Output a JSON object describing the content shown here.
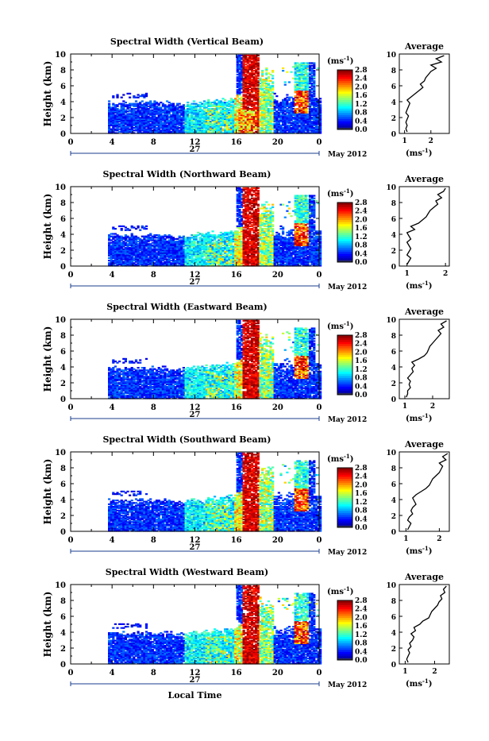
{
  "figure": {
    "x_axis_title": "Local Time",
    "month_label": "May 2012",
    "colorbar_unit": "(ms",
    "colorbar_unit_exp": "-1",
    "average_title": "Average"
  },
  "chart_data": [
    {
      "type": "heatmap",
      "title": "Spectral Width (Vertical Beam)",
      "ylabel": "Height (km)",
      "xlabel": "Local Time",
      "x_ticks": [
        "0",
        "4",
        "8",
        "12",
        "16",
        "20",
        "0"
      ],
      "xlim": [
        0,
        24
      ],
      "y_ticks": [
        "0",
        "2",
        "4",
        "6",
        "8",
        "10"
      ],
      "ylim": [
        0,
        10
      ],
      "date_label": "27",
      "colorbar": {
        "ticks": [
          "0.0",
          "0.4",
          "0.8",
          "1.2",
          "1.6",
          "2.0",
          "2.4",
          "2.8"
        ],
        "range": [
          0,
          2.8
        ],
        "colormap": "jet"
      },
      "average_profile": {
        "x_ticks": [
          "1",
          "2"
        ],
        "xlim": [
          0.8,
          2.7
        ],
        "xlabel": "(ms",
        "height": [
          0.2,
          0.6,
          1.0,
          1.4,
          1.8,
          2.2,
          2.6,
          3.0,
          3.4,
          3.8,
          4.2,
          4.6,
          5.0,
          5.4,
          5.8,
          6.2,
          6.6,
          7.0,
          7.4,
          7.8,
          8.2,
          8.6,
          9.0,
          9.4,
          9.8
        ],
        "value": [
          1.1,
          1.05,
          1.1,
          1.05,
          1.1,
          1.15,
          1.05,
          1.1,
          1.15,
          1.2,
          1.1,
          1.25,
          1.4,
          1.55,
          1.7,
          1.6,
          1.75,
          1.8,
          1.9,
          2.0,
          2.2,
          2.0,
          2.4,
          2.2,
          2.5
        ]
      }
    },
    {
      "type": "heatmap",
      "title": "Spectral Width (Northward Beam)",
      "ylabel": "Height (km)",
      "xlabel": "Local Time",
      "x_ticks": [
        "0",
        "4",
        "8",
        "12",
        "16",
        "20",
        "0"
      ],
      "xlim": [
        0,
        24
      ],
      "y_ticks": [
        "0",
        "2",
        "4",
        "6",
        "8",
        "10"
      ],
      "ylim": [
        0,
        10
      ],
      "date_label": "27",
      "colorbar": {
        "ticks": [
          "0.0",
          "0.4",
          "0.8",
          "1.2",
          "1.6",
          "2.0",
          "2.4",
          "2.8"
        ],
        "range": [
          0,
          2.8
        ],
        "colormap": "jet"
      },
      "average_profile": {
        "x_ticks": [
          "1",
          "2"
        ],
        "xlim": [
          0.8,
          2.1
        ],
        "xlabel": "(ms",
        "height": [
          0.2,
          0.6,
          1.0,
          1.4,
          1.8,
          2.2,
          2.6,
          3.0,
          3.4,
          3.8,
          4.2,
          4.6,
          5.0,
          5.4,
          5.8,
          6.2,
          6.6,
          7.0,
          7.4,
          7.8,
          8.2,
          8.6,
          9.0,
          9.4,
          9.8
        ],
        "value": [
          1.0,
          1.05,
          1.1,
          1.0,
          1.05,
          1.1,
          1.05,
          1.0,
          1.1,
          1.05,
          1.0,
          1.2,
          1.1,
          1.3,
          1.4,
          1.5,
          1.55,
          1.6,
          1.7,
          1.8,
          1.75,
          1.9,
          1.8,
          1.95,
          2.0
        ]
      }
    },
    {
      "type": "heatmap",
      "title": "Spectral Width (Eastward Beam)",
      "ylabel": "Height (km)",
      "xlabel": "Local Time",
      "x_ticks": [
        "0",
        "4",
        "8",
        "12",
        "16",
        "20",
        "0"
      ],
      "xlim": [
        0,
        24
      ],
      "y_ticks": [
        "0",
        "2",
        "4",
        "6",
        "8",
        "10"
      ],
      "ylim": [
        0,
        10
      ],
      "date_label": "27",
      "colorbar": {
        "ticks": [
          "0.0",
          "0.4",
          "0.8",
          "1.2",
          "1.6",
          "2.0",
          "2.4",
          "2.8"
        ],
        "range": [
          0,
          2.8
        ],
        "colormap": "jet"
      },
      "average_profile": {
        "x_ticks": [
          "1",
          "2"
        ],
        "xlim": [
          0.8,
          2.6
        ],
        "xlabel": "(ms",
        "height": [
          0.2,
          0.6,
          1.0,
          1.4,
          1.8,
          2.2,
          2.6,
          3.0,
          3.4,
          3.8,
          4.2,
          4.6,
          5.0,
          5.4,
          5.8,
          6.2,
          6.6,
          7.0,
          7.4,
          7.8,
          8.2,
          8.6,
          9.0,
          9.4,
          9.8
        ],
        "value": [
          1.05,
          1.1,
          1.1,
          1.2,
          1.15,
          1.2,
          1.1,
          1.2,
          1.3,
          1.25,
          1.35,
          1.25,
          1.5,
          1.7,
          1.8,
          1.85,
          1.9,
          2.0,
          2.1,
          2.2,
          2.3,
          2.2,
          2.4,
          2.3,
          2.5
        ]
      }
    },
    {
      "type": "heatmap",
      "title": "Spectral Width (Southward Beam)",
      "ylabel": "Height (km)",
      "xlabel": "Local Time",
      "x_ticks": [
        "0",
        "4",
        "8",
        "12",
        "16",
        "20",
        "0"
      ],
      "xlim": [
        0,
        24
      ],
      "y_ticks": [
        "0",
        "2",
        "4",
        "6",
        "8",
        "10"
      ],
      "ylim": [
        0,
        10
      ],
      "date_label": "27",
      "colorbar": {
        "ticks": [
          "0.0",
          "0.4",
          "0.8",
          "1.2",
          "1.6",
          "2.0",
          "2.4",
          "2.8"
        ],
        "range": [
          0,
          2.8
        ],
        "colormap": "jet"
      },
      "average_profile": {
        "x_ticks": [
          "1",
          "2"
        ],
        "xlim": [
          0.8,
          2.3
        ],
        "xlabel": "(ms",
        "height": [
          0.2,
          0.6,
          1.0,
          1.4,
          1.8,
          2.2,
          2.6,
          3.0,
          3.4,
          3.8,
          4.2,
          4.6,
          5.0,
          5.4,
          5.8,
          6.2,
          6.6,
          7.0,
          7.4,
          7.8,
          8.2,
          8.6,
          9.0,
          9.4,
          9.8
        ],
        "value": [
          1.05,
          1.1,
          1.15,
          1.05,
          1.1,
          1.2,
          1.15,
          1.2,
          1.3,
          1.25,
          1.2,
          1.3,
          1.45,
          1.6,
          1.7,
          1.75,
          1.8,
          1.9,
          2.0,
          2.05,
          2.1,
          2.0,
          2.2,
          2.1,
          2.25
        ]
      }
    },
    {
      "type": "heatmap",
      "title": "Spectral Width (Westward Beam)",
      "ylabel": "Height (km)",
      "xlabel": "Local Time",
      "x_ticks": [
        "0",
        "4",
        "8",
        "12",
        "16",
        "20",
        "0"
      ],
      "xlim": [
        0,
        24
      ],
      "y_ticks": [
        "0",
        "2",
        "4",
        "6",
        "8",
        "10"
      ],
      "ylim": [
        0,
        10
      ],
      "date_label": "27",
      "colorbar": {
        "ticks": [
          "0.0",
          "0.4",
          "0.8",
          "1.2",
          "1.6",
          "2.0",
          "2.4",
          "2.8"
        ],
        "range": [
          0,
          2.8
        ],
        "colormap": "jet"
      },
      "average_profile": {
        "x_ticks": [
          "1",
          "2"
        ],
        "xlim": [
          0.8,
          2.5
        ],
        "xlabel": "(ms",
        "height": [
          0.2,
          0.6,
          1.0,
          1.4,
          1.8,
          2.2,
          2.6,
          3.0,
          3.4,
          3.8,
          4.2,
          4.6,
          5.0,
          5.4,
          5.8,
          6.2,
          6.6,
          7.0,
          7.4,
          7.8,
          8.2,
          8.6,
          9.0,
          9.4,
          9.8
        ],
        "value": [
          1.1,
          1.05,
          1.1,
          1.15,
          1.1,
          1.2,
          1.15,
          1.25,
          1.3,
          1.2,
          1.35,
          1.3,
          1.5,
          1.6,
          1.8,
          1.85,
          1.9,
          2.0,
          2.1,
          2.15,
          2.25,
          2.2,
          2.35,
          2.3,
          2.4
        ]
      }
    }
  ]
}
